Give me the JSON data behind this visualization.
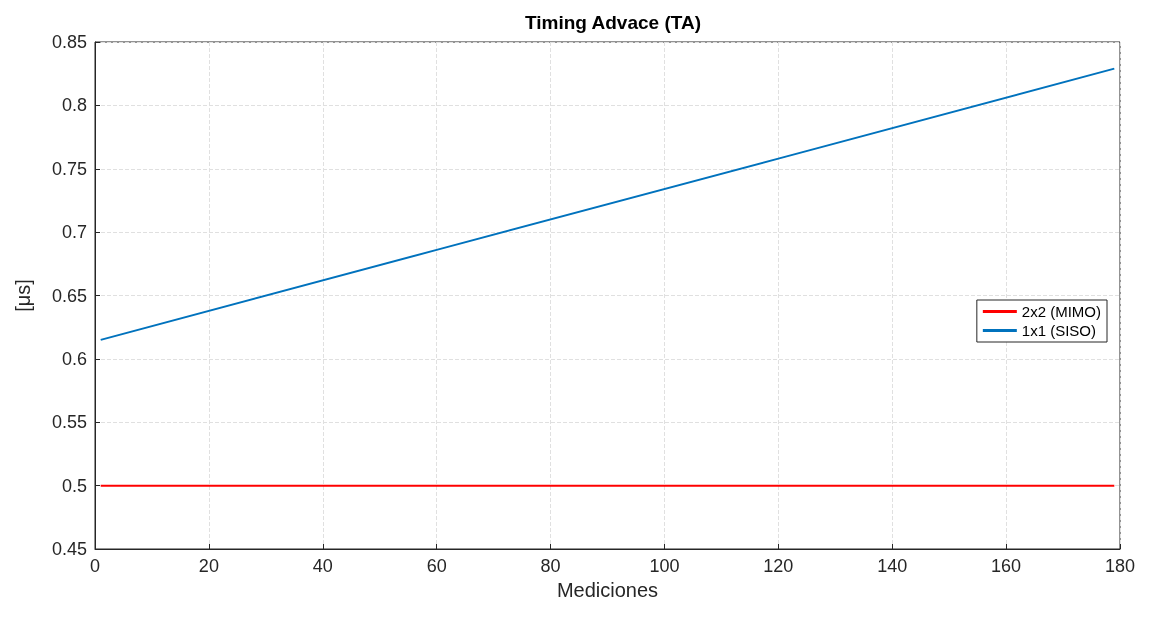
{
  "chart_data": {
    "type": "line",
    "title": "Timing Advace (TA)",
    "xlabel": "Mediciones",
    "ylabel": "[μs]",
    "series": [
      {
        "name": "2x2 (MIMO)",
        "color": "#ff0000",
        "x": [
          1,
          179
        ],
        "values": [
          0.5,
          0.5
        ]
      },
      {
        "name": "1x1 (SISO)",
        "color": "#0072bd",
        "x": [
          1,
          60,
          120,
          179
        ],
        "values": [
          0.615,
          0.686,
          0.758,
          0.829
        ]
      }
    ],
    "xlim": [
      0,
      180
    ],
    "xticks": [
      0,
      20,
      40,
      60,
      80,
      100,
      120,
      140,
      160,
      180
    ],
    "ylim": [
      0.45,
      0.85
    ],
    "yticks": [
      0.45,
      0.5,
      0.55,
      0.6,
      0.65,
      0.7,
      0.75,
      0.8,
      0.85
    ],
    "grid": true,
    "legend": "right",
    "marker": "none",
    "line_style": "solid"
  }
}
